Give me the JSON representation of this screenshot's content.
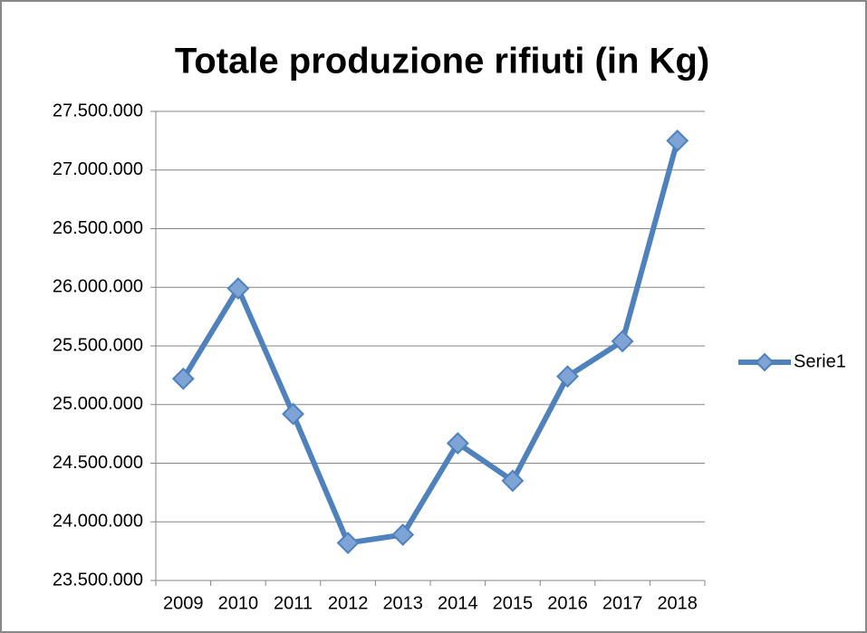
{
  "chart_data": {
    "type": "line",
    "title": "Totale produzione rifiuti (in Kg)",
    "categories": [
      "2009",
      "2010",
      "2011",
      "2012",
      "2013",
      "2014",
      "2015",
      "2016",
      "2017",
      "2018"
    ],
    "series": [
      {
        "name": "Serie1",
        "color": "#4f81bd",
        "values": [
          25220000,
          25990000,
          24920000,
          23820000,
          23890000,
          24670000,
          24350000,
          25240000,
          25540000,
          27250000
        ]
      }
    ],
    "ylim": [
      23500000,
      27500000
    ],
    "yticks": [
      {
        "value": 23500000,
        "label": "23.500.000"
      },
      {
        "value": 24000000,
        "label": "24.000.000"
      },
      {
        "value": 24500000,
        "label": "24.500.000"
      },
      {
        "value": 25000000,
        "label": "25.000.000"
      },
      {
        "value": 25500000,
        "label": "25.500.000"
      },
      {
        "value": 26000000,
        "label": "26.000.000"
      },
      {
        "value": 26500000,
        "label": "26.500.000"
      },
      {
        "value": 27000000,
        "label": "27.000.000"
      },
      {
        "value": 27500000,
        "label": "27.500.000"
      }
    ],
    "grid": true,
    "legend": "right"
  }
}
